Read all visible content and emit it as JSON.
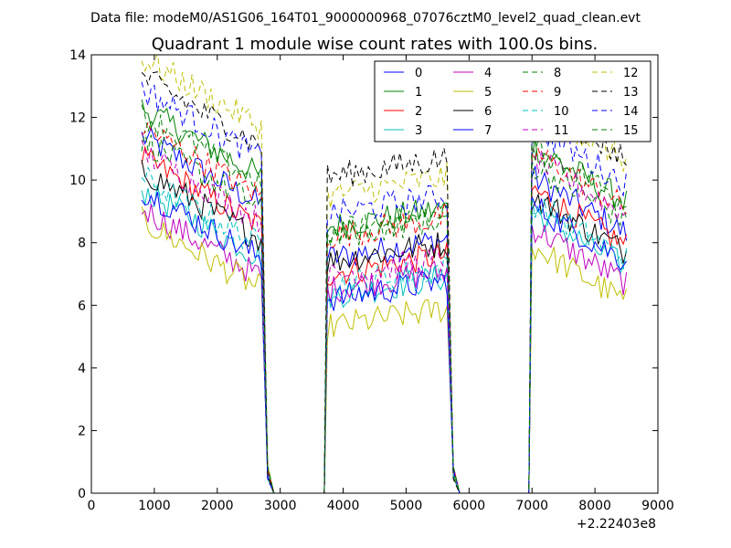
{
  "suptitle": "Data file: modeM0/AS1G06_164T01_9000000968_07076cztM0_level2_quad_clean.evt",
  "chart_data": {
    "type": "line",
    "title": "Quadrant 1 module wise count rates with 100.0s bins.",
    "xlabel": "",
    "ylabel": "",
    "x_offset_label": "+2.22403e8",
    "xlim": [
      0,
      9000
    ],
    "ylim": [
      0,
      14
    ],
    "x_ticks": [
      0,
      1000,
      2000,
      3000,
      4000,
      5000,
      6000,
      7000,
      8000,
      9000
    ],
    "y_ticks": [
      0,
      2,
      4,
      6,
      8,
      10,
      12,
      14
    ],
    "grid": false,
    "legend_position": "top-right",
    "segments": [
      {
        "start": 800,
        "end": 2700
      },
      {
        "start": 3750,
        "end": 5650
      },
      {
        "start": 7000,
        "end": 8500
      }
    ],
    "series": [
      {
        "name": "0",
        "color": "#0000ff",
        "dash": "solid",
        "levels": [
          10.3,
          7.8,
          9.2
        ]
      },
      {
        "name": "1",
        "color": "#008000",
        "dash": "solid",
        "levels": [
          11.2,
          8.8,
          10.2
        ]
      },
      {
        "name": "2",
        "color": "#ff0000",
        "dash": "solid",
        "levels": [
          9.6,
          7.3,
          8.8
        ]
      },
      {
        "name": "3",
        "color": "#00bfbf",
        "dash": "solid",
        "levels": [
          8.6,
          6.6,
          8.1
        ]
      },
      {
        "name": "4",
        "color": "#bf00bf",
        "dash": "solid",
        "levels": [
          8.0,
          6.8,
          7.6
        ]
      },
      {
        "name": "5",
        "color": "#bfbf00",
        "dash": "solid",
        "levels": [
          7.6,
          5.6,
          7.0
        ]
      },
      {
        "name": "6",
        "color": "#000000",
        "dash": "solid",
        "levels": [
          9.2,
          7.7,
          8.6
        ]
      },
      {
        "name": "7",
        "color": "#0000ff",
        "dash": "solid",
        "levels": [
          8.6,
          6.5,
          8.3
        ]
      },
      {
        "name": "8",
        "color": "#008000",
        "dash": "dashed",
        "levels": [
          10.2,
          8.6,
          9.6
        ]
      },
      {
        "name": "9",
        "color": "#ff0000",
        "dash": "dashed",
        "levels": [
          10.6,
          8.5,
          10.0
        ]
      },
      {
        "name": "10",
        "color": "#00bfbf",
        "dash": "dashed",
        "levels": [
          9.0,
          6.9,
          8.4
        ]
      },
      {
        "name": "11",
        "color": "#bf00bf",
        "dash": "dashed",
        "levels": [
          9.8,
          7.2,
          9.8
        ]
      },
      {
        "name": "12",
        "color": "#bfbf00",
        "dash": "dashed",
        "levels": [
          12.8,
          9.8,
          11.5
        ]
      },
      {
        "name": "13",
        "color": "#000000",
        "dash": "dashed",
        "levels": [
          12.2,
          10.4,
          11.6
        ]
      },
      {
        "name": "14",
        "color": "#0000ff",
        "dash": "dashed",
        "levels": [
          11.8,
          9.2,
          10.8
        ]
      },
      {
        "name": "15",
        "color": "#008000",
        "dash": "dashed",
        "levels": [
          11.0,
          8.5,
          10.2
        ]
      }
    ]
  }
}
